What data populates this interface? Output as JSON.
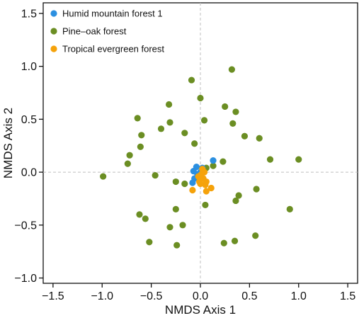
{
  "chart_data": {
    "type": "scatter",
    "title": "",
    "xlabel": "NMDS Axis 1",
    "ylabel": "NMDS Axis 2",
    "xlim": [
      -1.6,
      1.6
    ],
    "ylim": [
      -1.05,
      1.6
    ],
    "xticks": [
      -1.5,
      -1.0,
      -0.5,
      0.0,
      0.5,
      1.0,
      1.5
    ],
    "xtick_labels": [
      "−1.5",
      "−1.0",
      "−0.5",
      "0.0",
      "0.5",
      "1.0",
      "1.5"
    ],
    "yticks": [
      -1.0,
      -0.5,
      0.0,
      0.5,
      1.0,
      1.5
    ],
    "ytick_labels": [
      "−1.0",
      "−0.5",
      "0.0",
      "0.5",
      "1.0",
      "1.5"
    ],
    "grid": false,
    "reference_lines": {
      "x": 0,
      "y": 0,
      "style": "dashed"
    },
    "legend_position": "top-left",
    "series": [
      {
        "name": "Pine–oak forest",
        "color": "#6b8e23",
        "points": [
          [
            -0.09,
            0.87
          ],
          [
            0.32,
            0.97
          ],
          [
            0.0,
            0.7
          ],
          [
            -0.32,
            0.64
          ],
          [
            0.25,
            0.62
          ],
          [
            0.36,
            0.57
          ],
          [
            -0.64,
            0.51
          ],
          [
            -0.31,
            0.47
          ],
          [
            0.04,
            0.49
          ],
          [
            0.33,
            0.46
          ],
          [
            -0.4,
            0.41
          ],
          [
            -0.16,
            0.37
          ],
          [
            -0.6,
            0.35
          ],
          [
            0.45,
            0.34
          ],
          [
            0.6,
            0.32
          ],
          [
            -0.06,
            0.27
          ],
          [
            -0.61,
            0.24
          ],
          [
            -0.72,
            0.16
          ],
          [
            0.71,
            0.12
          ],
          [
            1.0,
            0.12
          ],
          [
            -0.74,
            0.08
          ],
          [
            0.23,
            0.1
          ],
          [
            0.13,
            0.06
          ],
          [
            0.06,
            0.04
          ],
          [
            -0.99,
            -0.04
          ],
          [
            -0.46,
            -0.03
          ],
          [
            -0.25,
            -0.09
          ],
          [
            -0.16,
            -0.11
          ],
          [
            0.05,
            -0.31
          ],
          [
            0.57,
            -0.16
          ],
          [
            0.39,
            -0.22
          ],
          [
            0.36,
            -0.27
          ],
          [
            -0.25,
            -0.35
          ],
          [
            0.91,
            -0.35
          ],
          [
            -0.62,
            -0.4
          ],
          [
            -0.56,
            -0.44
          ],
          [
            -0.18,
            -0.5
          ],
          [
            -0.31,
            -0.52
          ],
          [
            0.56,
            -0.6
          ],
          [
            -0.52,
            -0.66
          ],
          [
            0.35,
            -0.65
          ],
          [
            0.24,
            -0.67
          ],
          [
            -0.24,
            -0.69
          ]
        ]
      },
      {
        "name": "Humid mountain forest 1",
        "color": "#2b8fe0",
        "points": [
          [
            0.13,
            0.11
          ],
          [
            -0.04,
            0.05
          ],
          [
            0.02,
            0.04
          ],
          [
            -0.07,
            0.01
          ],
          [
            -0.03,
            -0.02
          ],
          [
            -0.06,
            -0.06
          ],
          [
            -0.01,
            -0.05
          ],
          [
            0.0,
            0.0
          ],
          [
            -0.08,
            -0.1
          ]
        ]
      },
      {
        "name": "Tropical evergreen forest",
        "color": "#f5a20a",
        "points": [
          [
            0.02,
            0.03
          ],
          [
            0.04,
            0.0
          ],
          [
            0.01,
            -0.02
          ],
          [
            -0.02,
            -0.04
          ],
          [
            0.03,
            -0.06
          ],
          [
            0.06,
            -0.09
          ],
          [
            -0.01,
            -0.09
          ],
          [
            0.05,
            -0.12
          ],
          [
            0.11,
            -0.15
          ],
          [
            -0.08,
            -0.17
          ],
          [
            0.06,
            -0.18
          ],
          [
            0.0,
            -0.11
          ]
        ]
      }
    ]
  },
  "legend": {
    "items": [
      {
        "label": "Humid mountain forest 1",
        "color": "#2b8fe0"
      },
      {
        "label": "Pine–oak forest",
        "color": "#6b8e23"
      },
      {
        "label": "Tropical evergreen forest",
        "color": "#f5a20a"
      }
    ]
  }
}
